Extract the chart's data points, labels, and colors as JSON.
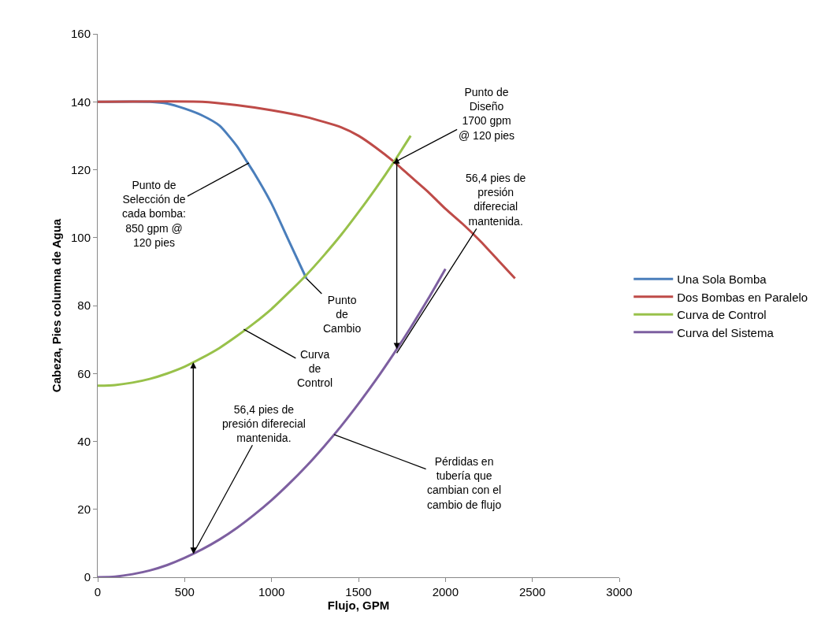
{
  "chart_data": {
    "type": "line",
    "xlabel": "Flujo, GPM",
    "ylabel": "Cabeza, Pies columna de Agua",
    "xlim": [
      0,
      3000
    ],
    "xticks": [
      0,
      500,
      1000,
      1500,
      2000,
      2500,
      3000
    ],
    "ylim": [
      0,
      160
    ],
    "yticks": [
      0,
      20,
      40,
      60,
      80,
      100,
      120,
      140,
      160
    ],
    "grid": false,
    "legend": "right",
    "marker": "none",
    "line_style": "solid",
    "series": [
      {
        "name": "Una Sola Bomba",
        "color": "#4a7ebb",
        "x": [
          0,
          300,
          400,
          500,
          600,
          700,
          800,
          850,
          900,
          1000,
          1100,
          1200
        ],
        "values": [
          140,
          140,
          139.5,
          138,
          136,
          133,
          127,
          123,
          119,
          110,
          99,
          88
        ]
      },
      {
        "name": "Dos Bombas en Paralelo",
        "color": "#be4b48",
        "x": [
          0,
          600,
          800,
          1000,
          1200,
          1400,
          1500,
          1600,
          1700,
          1800,
          1900,
          2000,
          2100,
          2200,
          2300,
          2400
        ],
        "values": [
          140,
          140,
          139,
          137.5,
          135.5,
          132.5,
          130,
          126.5,
          122.5,
          118,
          113.5,
          108.5,
          104,
          99,
          93.5,
          88
        ]
      },
      {
        "name": "Curva de Control",
        "color": "#98c14a",
        "x": [
          0,
          100,
          200,
          300,
          400,
          500,
          600,
          700,
          800,
          900,
          1000,
          1100,
          1200,
          1300,
          1400,
          1500,
          1600,
          1700,
          1800
        ],
        "values": [
          56.4,
          56.6,
          57.3,
          58.4,
          60,
          62,
          64.6,
          67.5,
          71,
          74.8,
          79,
          83.9,
          89,
          94.7,
          100.8,
          107.5,
          114.5,
          122,
          130
        ]
      },
      {
        "name": "Curva del Sistema",
        "color": "#7d5fa0",
        "x": [
          0,
          100,
          200,
          300,
          400,
          500,
          600,
          700,
          800,
          900,
          1000,
          1100,
          1200,
          1300,
          1400,
          1500,
          1600,
          1700,
          1800,
          1900,
          2000
        ],
        "values": [
          0,
          0.2,
          0.9,
          2,
          3.6,
          5.7,
          8.2,
          11.1,
          14.5,
          18.4,
          22.7,
          27.5,
          32.7,
          38.4,
          44.5,
          51.1,
          58.1,
          65.6,
          73.5,
          81.9,
          90.8
        ]
      }
    ],
    "annotations": [
      {
        "text": "Punto de\nSelección de\ncada bomba:\n850 gpm @\n120 pies",
        "x": 870,
        "y": 122
      },
      {
        "text": "Punto de\nDiseño\n1700 gpm\n@ 120 pies",
        "x": 1700,
        "y": 122
      },
      {
        "text": "56,4 pies de\npresión\ndiferecial\nmantenida.",
        "x": 1720,
        "y": 66
      },
      {
        "text": "Punto\nde\nCambio",
        "x": 1200,
        "y": 88
      },
      {
        "text": "Curva\nde\nControl",
        "x": 840,
        "y": 73
      },
      {
        "text": "56,4 pies de\npresión diferecial\nmantenida.",
        "x": 550,
        "y": 7
      },
      {
        "text": "Pérdidas en\ntubería que\ncambian con el\ncambio de flujo",
        "x": 1360,
        "y": 42
      }
    ]
  }
}
